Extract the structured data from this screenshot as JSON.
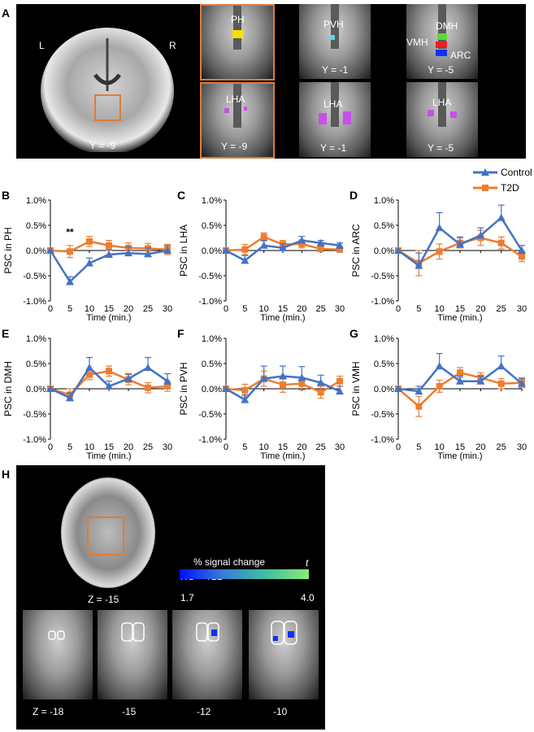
{
  "panel_labels": {
    "A": "A",
    "B": "B",
    "C": "C",
    "D": "D",
    "E": "E",
    "F": "F",
    "G": "G",
    "H": "H"
  },
  "panelA": {
    "coronal_left": "L",
    "coronal_right": "R",
    "coronal_y": "Y = -9",
    "slices": [
      {
        "label": "PH",
        "y": "Y = -9"
      },
      {
        "label": "PVH",
        "y": "Y = -1"
      },
      {
        "label": "DMH",
        "y": "Y = -5",
        "extra": [
          "VMH",
          "ARC"
        ]
      },
      {
        "label": "LHA",
        "y": "Y = -9"
      },
      {
        "label": "LHA",
        "y": "Y = -1"
      },
      {
        "label": "LHA",
        "y": "Y = -5"
      }
    ]
  },
  "legend": {
    "control": "Control",
    "t2d": "T2D"
  },
  "colors": {
    "control": "#4472c4",
    "t2d": "#ed7d31",
    "box": "#e07b39"
  },
  "chart_data": [
    {
      "id": "B",
      "type": "line",
      "ylabel": "PSC in PH",
      "xlabel": "Time (min.)",
      "x": [
        0,
        5,
        10,
        15,
        20,
        25,
        30
      ],
      "ylim": [
        -1,
        1
      ],
      "yticks": [
        "1.0%",
        "0.5%",
        "0.0%",
        "-0.5%",
        "-1.0%"
      ],
      "annotation": "**",
      "series": [
        {
          "name": "Control",
          "values": [
            0,
            -0.62,
            -0.25,
            -0.08,
            -0.05,
            -0.07,
            0.0
          ],
          "err": [
            0,
            0.1,
            0.1,
            0.1,
            0.12,
            0.12,
            0.1
          ]
        },
        {
          "name": "T2D",
          "values": [
            0,
            -0.02,
            0.18,
            0.1,
            0.05,
            0.04,
            0.02
          ],
          "err": [
            0,
            0.12,
            0.1,
            0.1,
            0.1,
            0.1,
            0.1
          ]
        }
      ]
    },
    {
      "id": "C",
      "type": "line",
      "ylabel": "PSC in LHA",
      "xlabel": "Time (min.)",
      "x": [
        0,
        5,
        10,
        15,
        20,
        25,
        30
      ],
      "ylim": [
        -1,
        1
      ],
      "yticks": [
        "1.0%",
        "0.5%",
        "0.0%",
        "-0.5%",
        "-1.0%"
      ],
      "series": [
        {
          "name": "Control",
          "values": [
            0,
            -0.2,
            0.1,
            0.05,
            0.2,
            0.15,
            0.1
          ],
          "err": [
            0,
            0.1,
            0.1,
            0.08,
            0.08,
            0.05,
            0.05
          ]
        },
        {
          "name": "T2D",
          "values": [
            0,
            0.02,
            0.27,
            0.12,
            0.13,
            0.03,
            0.02
          ],
          "err": [
            0,
            0.1,
            0.08,
            0.08,
            0.08,
            0.05,
            0.05
          ]
        }
      ]
    },
    {
      "id": "D",
      "type": "line",
      "ylabel": "PSC in ARC",
      "xlabel": "Time (min.)",
      "x": [
        0,
        5,
        10,
        15,
        20,
        25,
        30
      ],
      "ylim": [
        -1,
        1
      ],
      "yticks": [
        "1.0%",
        "0.5%",
        "0.0%",
        "-0.5%",
        "-1.0%"
      ],
      "series": [
        {
          "name": "Control",
          "values": [
            0,
            -0.3,
            0.45,
            0.12,
            0.3,
            0.65,
            0.0
          ],
          "err": [
            0,
            0.25,
            0.3,
            0.15,
            0.15,
            0.25,
            0.1
          ]
        },
        {
          "name": "T2D",
          "values": [
            0,
            -0.25,
            -0.02,
            0.15,
            0.25,
            0.15,
            -0.12
          ],
          "err": [
            0,
            0.25,
            0.15,
            0.1,
            0.15,
            0.12,
            0.1
          ]
        }
      ]
    },
    {
      "id": "E",
      "type": "line",
      "ylabel": "PSC in DMH",
      "xlabel": "Time (min.)",
      "x": [
        0,
        5,
        10,
        15,
        20,
        25,
        30
      ],
      "ylim": [
        -1,
        1
      ],
      "yticks": [
        "1.0%",
        "0.5%",
        "0.0%",
        "-0.5%",
        "-1.0%"
      ],
      "series": [
        {
          "name": "Control",
          "values": [
            0,
            -0.18,
            0.42,
            0.05,
            0.2,
            0.42,
            0.15
          ],
          "err": [
            0,
            0.1,
            0.2,
            0.1,
            0.1,
            0.2,
            0.15
          ]
        },
        {
          "name": "T2D",
          "values": [
            0,
            -0.12,
            0.28,
            0.35,
            0.18,
            0.02,
            0.05
          ],
          "err": [
            0,
            0.12,
            0.1,
            0.1,
            0.1,
            0.1,
            0.1
          ]
        }
      ]
    },
    {
      "id": "F",
      "type": "line",
      "ylabel": "PSC in PVH",
      "xlabel": "Time (min.)",
      "x": [
        0,
        5,
        10,
        15,
        20,
        25,
        30
      ],
      "ylim": [
        -1,
        1
      ],
      "yticks": [
        "1.0%",
        "0.5%",
        "0.0%",
        "-0.5%",
        "-1.0%"
      ],
      "series": [
        {
          "name": "Control",
          "values": [
            0,
            -0.22,
            0.2,
            0.25,
            0.22,
            0.12,
            -0.05
          ],
          "err": [
            0,
            0.1,
            0.25,
            0.2,
            0.22,
            0.15,
            0.1
          ]
        },
        {
          "name": "T2D",
          "values": [
            0,
            -0.03,
            0.2,
            0.08,
            0.1,
            -0.07,
            0.15
          ],
          "err": [
            0,
            0.12,
            0.15,
            0.15,
            0.12,
            0.12,
            0.1
          ]
        }
      ]
    },
    {
      "id": "G",
      "type": "line",
      "ylabel": "PSC in VMH",
      "xlabel": "Time (min.)",
      "x": [
        0,
        5,
        10,
        15,
        20,
        25,
        30
      ],
      "ylim": [
        -1,
        1
      ],
      "yticks": [
        "1.0%",
        "0.5%",
        "0.0%",
        "-0.5%",
        "-1.0%"
      ],
      "series": [
        {
          "name": "Control",
          "values": [
            0,
            -0.05,
            0.45,
            0.15,
            0.15,
            0.45,
            0.1
          ],
          "err": [
            0,
            0.1,
            0.25,
            0.1,
            0.1,
            0.2,
            0.1
          ]
        },
        {
          "name": "T2D",
          "values": [
            0,
            -0.35,
            0.05,
            0.32,
            0.22,
            0.1,
            0.12
          ],
          "err": [
            0,
            0.2,
            0.12,
            0.1,
            0.1,
            0.1,
            0.1
          ]
        }
      ]
    }
  ],
  "panelH": {
    "axial_z": "Z = -15",
    "colorbar_title": "% signal change",
    "colorbar_sub": "HC < T2D",
    "colorbar_t": "t",
    "colorbar_min": "1.7",
    "colorbar_max": "4.0",
    "slices": [
      "Z = -18",
      "-15",
      "-12",
      "-10"
    ]
  }
}
